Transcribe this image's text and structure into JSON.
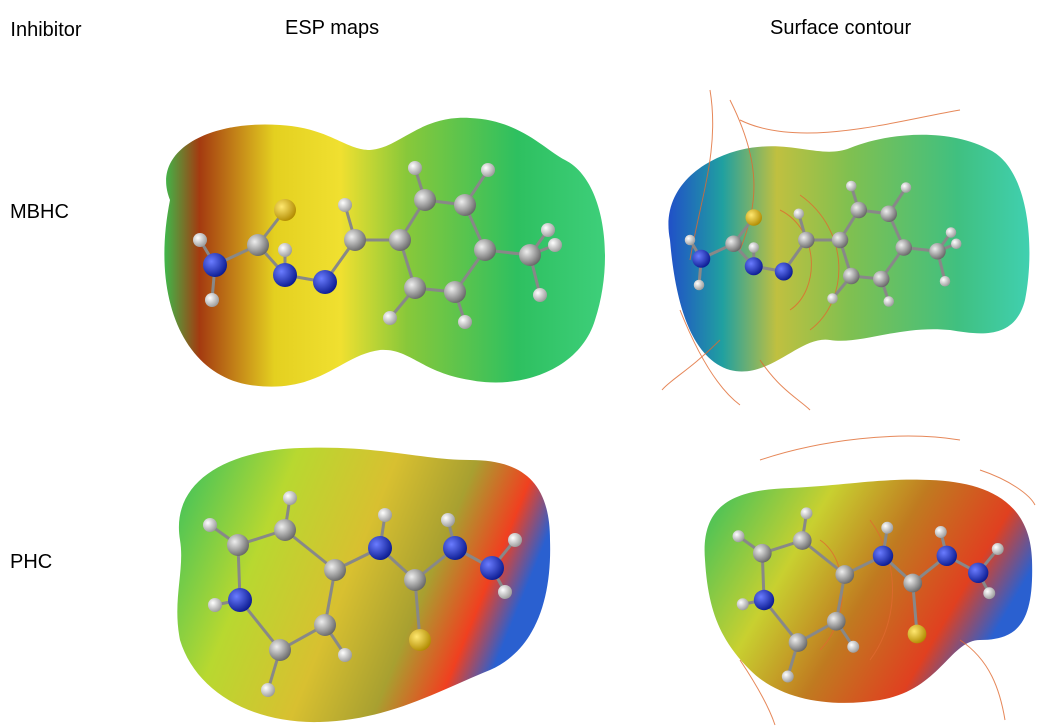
{
  "header": {
    "col1": "Inhibitor",
    "col2": "ESP maps",
    "col3": "Surface contour"
  },
  "rows": [
    {
      "label": "MBHC"
    },
    {
      "label": "PHC"
    }
  ]
}
